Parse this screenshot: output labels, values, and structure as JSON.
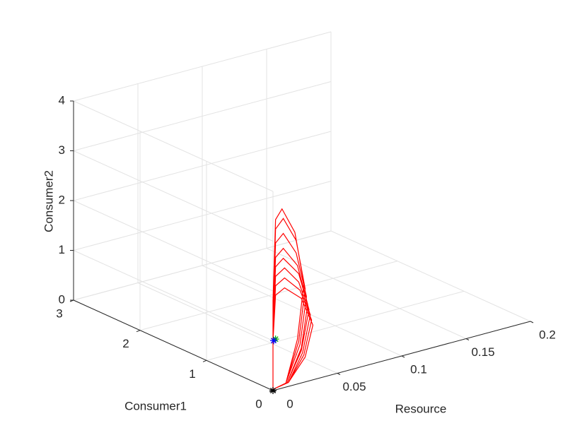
{
  "chart_data": {
    "type": "line3d",
    "x_label": "Resource",
    "y_label": "Consumer1",
    "z_label": "Consumer2",
    "xlim": [
      0,
      0.2
    ],
    "ylim": [
      0,
      3
    ],
    "zlim": [
      0,
      4
    ],
    "xticks": [
      0,
      0.05,
      0.1,
      0.15,
      0.2
    ],
    "yticks": [
      0,
      1,
      2,
      3
    ],
    "zticks": [
      0,
      1,
      2,
      3,
      4
    ],
    "grid": true,
    "series": [
      {
        "color": "#ff0000",
        "x": [
          0,
          0,
          0.002,
          0.007,
          0.017,
          0.024,
          0.019,
          0.01,
          0.001,
          0,
          0,
          0.002,
          0.008,
          0.018,
          0.025,
          0.02,
          0.01,
          0.001,
          0,
          0,
          0.002,
          0.008,
          0.018,
          0.026,
          0.021,
          0.01,
          0.001,
          0,
          0,
          0.002,
          0.008,
          0.019,
          0.027,
          0.022,
          0.011,
          0.001,
          0,
          0,
          0.002,
          0.008,
          0.02,
          0.028,
          0.022,
          0.011,
          0.001,
          0,
          0,
          0.002,
          0.009,
          0.02,
          0.029,
          0.023,
          0.012,
          0.001,
          0,
          0,
          0.002,
          0.009,
          0.021,
          0.03,
          0.024,
          0.012,
          0.001,
          0,
          0,
          0.002,
          0.009,
          0.022,
          0.031,
          0.025,
          0.012,
          0.001
        ],
        "y": [
          0,
          0,
          0,
          0,
          0,
          0,
          0,
          0,
          0,
          0,
          0,
          0,
          0,
          0,
          0,
          0,
          0,
          0,
          0,
          0,
          0,
          0,
          0,
          0,
          0,
          0,
          0,
          0,
          0,
          0,
          0,
          0,
          0,
          0,
          0,
          0,
          0,
          0,
          0,
          0,
          0,
          0,
          0,
          0,
          0,
          0,
          0,
          0,
          0,
          0,
          0,
          0,
          0,
          0,
          0,
          0,
          0,
          0,
          0,
          0,
          0,
          0,
          0,
          0,
          0,
          0,
          0,
          0,
          0,
          0,
          0,
          0
        ],
        "z": [
          0.02,
          1.8,
          3.42,
          3.6,
          3.06,
          1.98,
          0.9,
          0.08,
          0.03,
          0.02,
          1.7,
          3.23,
          3.4,
          2.89,
          1.87,
          0.85,
          0.08,
          0.03,
          0.02,
          1.55,
          2.95,
          3.1,
          2.64,
          1.71,
          0.78,
          0.08,
          0.03,
          0.02,
          1.4,
          2.66,
          2.8,
          2.38,
          1.54,
          0.7,
          0.08,
          0.03,
          0.02,
          1.3,
          2.47,
          2.6,
          2.21,
          1.43,
          0.65,
          0.08,
          0.03,
          0.02,
          1.2,
          2.28,
          2.4,
          2.04,
          1.32,
          0.6,
          0.08,
          0.03,
          0.02,
          1.1,
          2.09,
          2.2,
          1.87,
          1.21,
          0.55,
          0.08,
          0.03,
          0.02,
          1.0,
          1.9,
          2.0,
          1.7,
          1.1,
          0.5,
          0.08,
          0.03
        ]
      }
    ],
    "markers": [
      {
        "color": "#000000",
        "x": 0,
        "y": 0,
        "z": 0
      },
      {
        "color": "#00b000",
        "x": 0.002,
        "y": 0,
        "z": 1.02
      },
      {
        "color": "#0000ff",
        "x": 0.0005,
        "y": 0,
        "z": 1.0
      }
    ]
  }
}
